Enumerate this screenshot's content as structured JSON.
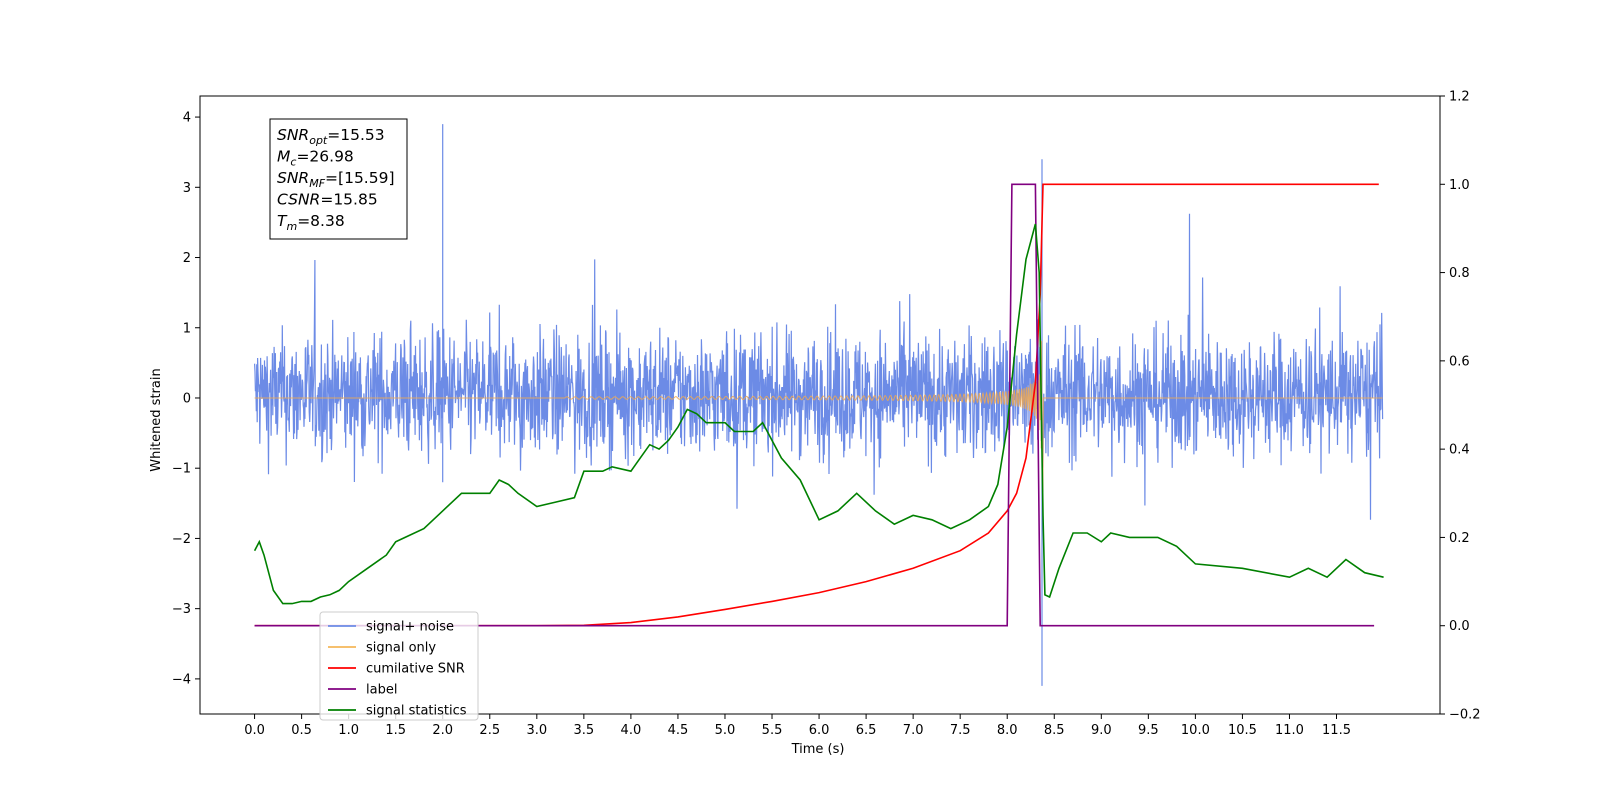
{
  "chart_data": {
    "type": "line",
    "xlabel": "Time (s)",
    "ylabel": "Whitened strain",
    "xlim": [
      -0.58,
      12.6
    ],
    "ylim": [
      -4.5,
      4.3
    ],
    "y2lim": [
      -0.2,
      1.2
    ],
    "x_ticks": [
      "0.0",
      "0.5",
      "1.0",
      "1.5",
      "2.0",
      "2.5",
      "3.0",
      "3.5",
      "4.0",
      "4.5",
      "5.0",
      "5.5",
      "6.0",
      "6.5",
      "7.0",
      "7.5",
      "8.0",
      "8.5",
      "9.0",
      "9.5",
      "10.0",
      "10.5",
      "11.0",
      "11.5"
    ],
    "y_ticks": [
      "4",
      "3",
      "2",
      "1",
      "0",
      "−1",
      "−2",
      "−3",
      "−4"
    ],
    "y2_ticks": [
      "1.2",
      "1.0",
      "0.8",
      "0.6",
      "0.4",
      "0.2",
      "0.0",
      "−0.2"
    ],
    "legend_position": "lower-left",
    "annotation": [
      {
        "base": "SNR",
        "sub": "opt",
        "value": "=15.53"
      },
      {
        "base": "M",
        "sub": "c",
        "value": "=26.98"
      },
      {
        "base": "SNR",
        "sub": "MF",
        "value": "=[15.59]"
      },
      {
        "base": "CSNR",
        "sub": "",
        "value": "=15.85"
      },
      {
        "base": "T",
        "sub": "m",
        "value": "=8.38"
      }
    ],
    "series": [
      {
        "name": "signal+ noise",
        "axis": "left",
        "color": "#6c8be6",
        "note": "stochastic whitened noise, roughly ±1.5 with spikes to 3.9 (t≈2.0) and −4.1 (t≈8.37), t 0–12"
      },
      {
        "name": "signal only",
        "axis": "left",
        "color": "#f5b75a",
        "note": "chirp starting ~t=3.5, amplitude growing to ~1.3 at merger t≈8.38, zero afterwards"
      },
      {
        "name": "cumilative SNR",
        "axis": "right",
        "color": "#ff0000",
        "points": [
          [
            0,
            0
          ],
          [
            3,
            0
          ],
          [
            3.5,
            0.001
          ],
          [
            4,
            0.007
          ],
          [
            4.5,
            0.02
          ],
          [
            5,
            0.037
          ],
          [
            5.5,
            0.055
          ],
          [
            6,
            0.075
          ],
          [
            6.5,
            0.1
          ],
          [
            7,
            0.13
          ],
          [
            7.5,
            0.17
          ],
          [
            7.8,
            0.21
          ],
          [
            8.0,
            0.26
          ],
          [
            8.1,
            0.3
          ],
          [
            8.2,
            0.38
          ],
          [
            8.3,
            0.55
          ],
          [
            8.35,
            0.75
          ],
          [
            8.38,
            1.0
          ],
          [
            11.95,
            1.0
          ]
        ]
      },
      {
        "name": "label",
        "axis": "right",
        "color": "#800080",
        "points": [
          [
            0,
            0
          ],
          [
            8.0,
            0
          ],
          [
            8.05,
            1.0
          ],
          [
            8.3,
            1.0
          ],
          [
            8.35,
            0
          ],
          [
            11.9,
            0
          ]
        ]
      },
      {
        "name": "signal statistics",
        "axis": "right",
        "color": "#008000",
        "points": [
          [
            0,
            0.17
          ],
          [
            0.05,
            0.19
          ],
          [
            0.1,
            0.16
          ],
          [
            0.2,
            0.08
          ],
          [
            0.3,
            0.05
          ],
          [
            0.4,
            0.05
          ],
          [
            0.5,
            0.055
          ],
          [
            0.6,
            0.055
          ],
          [
            0.7,
            0.065
          ],
          [
            0.8,
            0.07
          ],
          [
            0.9,
            0.08
          ],
          [
            1.0,
            0.1
          ],
          [
            1.2,
            0.13
          ],
          [
            1.4,
            0.16
          ],
          [
            1.5,
            0.19
          ],
          [
            1.6,
            0.2
          ],
          [
            1.8,
            0.22
          ],
          [
            2.0,
            0.26
          ],
          [
            2.2,
            0.3
          ],
          [
            2.3,
            0.3
          ],
          [
            2.5,
            0.3
          ],
          [
            2.6,
            0.33
          ],
          [
            2.7,
            0.32
          ],
          [
            2.8,
            0.3
          ],
          [
            3.0,
            0.27
          ],
          [
            3.2,
            0.28
          ],
          [
            3.4,
            0.29
          ],
          [
            3.5,
            0.35
          ],
          [
            3.7,
            0.35
          ],
          [
            3.8,
            0.36
          ],
          [
            4.0,
            0.35
          ],
          [
            4.2,
            0.41
          ],
          [
            4.3,
            0.4
          ],
          [
            4.4,
            0.42
          ],
          [
            4.5,
            0.45
          ],
          [
            4.6,
            0.49
          ],
          [
            4.7,
            0.48
          ],
          [
            4.8,
            0.46
          ],
          [
            5.0,
            0.46
          ],
          [
            5.1,
            0.44
          ],
          [
            5.3,
            0.44
          ],
          [
            5.4,
            0.46
          ],
          [
            5.6,
            0.38
          ],
          [
            5.8,
            0.33
          ],
          [
            6.0,
            0.24
          ],
          [
            6.2,
            0.26
          ],
          [
            6.4,
            0.3
          ],
          [
            6.6,
            0.26
          ],
          [
            6.8,
            0.23
          ],
          [
            7.0,
            0.25
          ],
          [
            7.2,
            0.24
          ],
          [
            7.4,
            0.22
          ],
          [
            7.6,
            0.24
          ],
          [
            7.8,
            0.27
          ],
          [
            7.9,
            0.32
          ],
          [
            8.0,
            0.45
          ],
          [
            8.1,
            0.66
          ],
          [
            8.2,
            0.83
          ],
          [
            8.3,
            0.91
          ],
          [
            8.34,
            0.8
          ],
          [
            8.38,
            0.25
          ],
          [
            8.4,
            0.07
          ],
          [
            8.45,
            0.065
          ],
          [
            8.55,
            0.13
          ],
          [
            8.7,
            0.21
          ],
          [
            8.85,
            0.21
          ],
          [
            9.0,
            0.19
          ],
          [
            9.1,
            0.21
          ],
          [
            9.3,
            0.2
          ],
          [
            9.6,
            0.2
          ],
          [
            9.8,
            0.18
          ],
          [
            10.0,
            0.14
          ],
          [
            10.5,
            0.13
          ],
          [
            11.0,
            0.11
          ],
          [
            11.2,
            0.13
          ],
          [
            11.4,
            0.11
          ],
          [
            11.6,
            0.15
          ],
          [
            11.8,
            0.12
          ],
          [
            12.0,
            0.11
          ]
        ]
      }
    ]
  }
}
